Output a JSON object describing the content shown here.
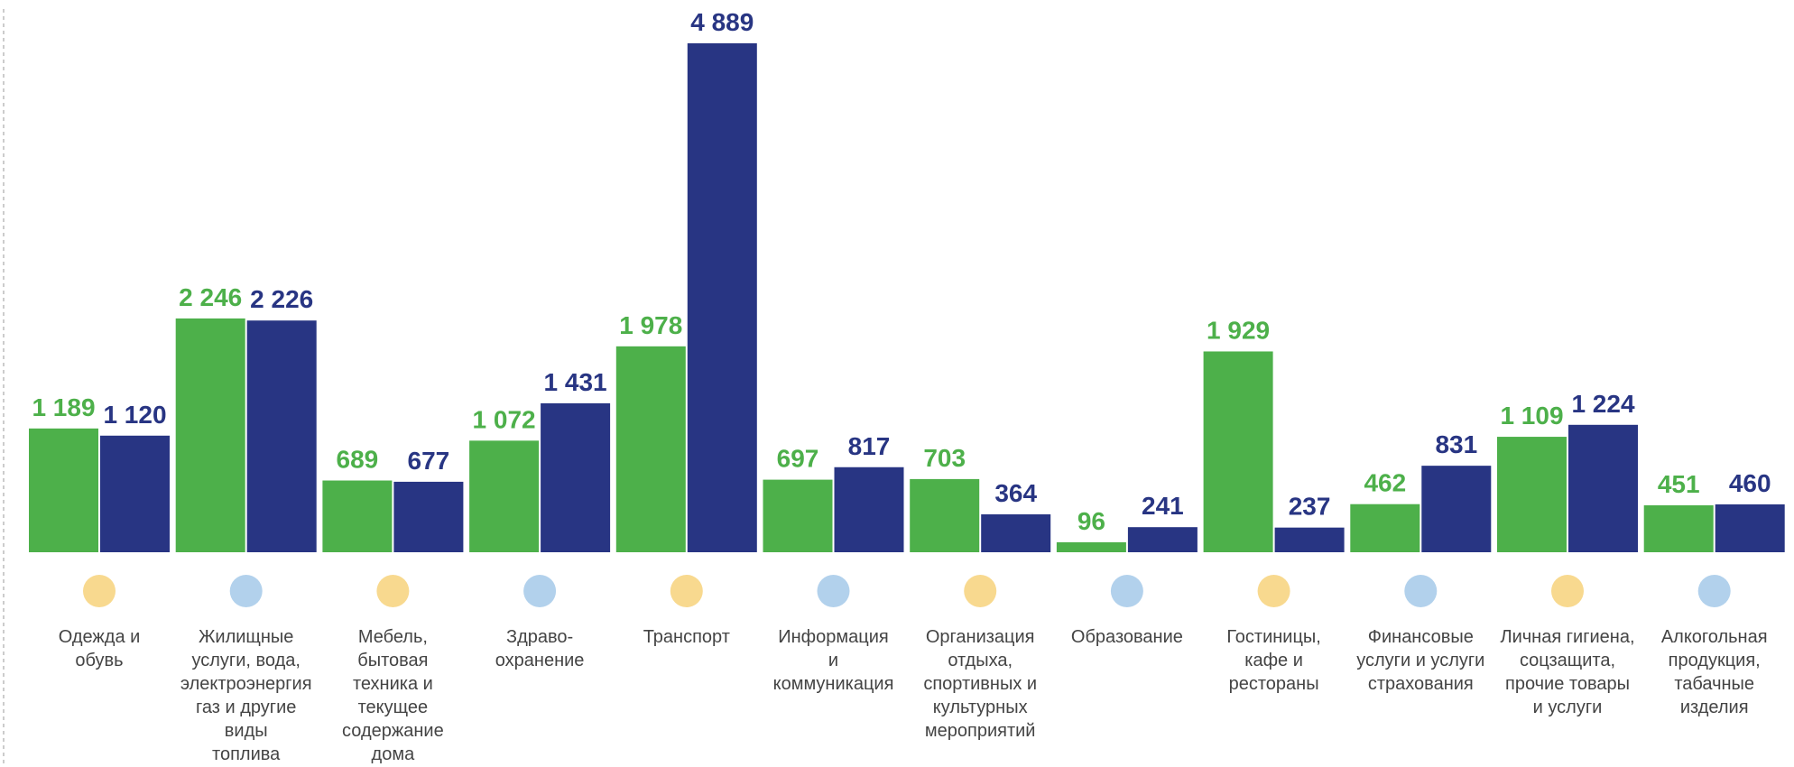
{
  "chart_data": {
    "type": "bar",
    "categories": [
      "Одежда и\nобувь",
      "Жилищные\nуслуги, вода,\nэлектроэнергия\nгаз и другие виды\nтоплива",
      "Мебель,\nбытовая\nтехника и\nтекущее\nсодержание\nдома",
      "Здраво-\nохранение",
      "Транспорт",
      "Информация\nи\nкоммуникация",
      "Организация\nотдыха,\nспортивных и\nкультурных\nмероприятий",
      "Образование",
      "Гостиницы,\nкафе и\nрестораны",
      "Финансовые\nуслуги и услуги\nстрахования",
      "Личная гигиена,\nсоцзащита,\nпрочие товары\nи услуги",
      "Алкогольная\nпродукция,\nтабачные\nизделия"
    ],
    "series": [
      {
        "color": "#4db04a",
        "values": [
          1189,
          2246,
          689,
          1072,
          1978,
          697,
          703,
          96,
          1929,
          462,
          1109,
          451
        ],
        "value_labels": [
          "1 189",
          "2 246",
          "689",
          "1 072",
          "1 978",
          "697",
          "703",
          "96",
          "1 929",
          "462",
          "1 109",
          "451"
        ]
      },
      {
        "color": "#283583",
        "values": [
          1120,
          2226,
          677,
          1431,
          4889,
          817,
          364,
          241,
          237,
          831,
          1224,
          460
        ],
        "value_labels": [
          "1 120",
          "2 226",
          "677",
          "1 431",
          "4 889",
          "817",
          "364",
          "241",
          "237",
          "831",
          "1 224",
          "460"
        ]
      }
    ]
  }
}
